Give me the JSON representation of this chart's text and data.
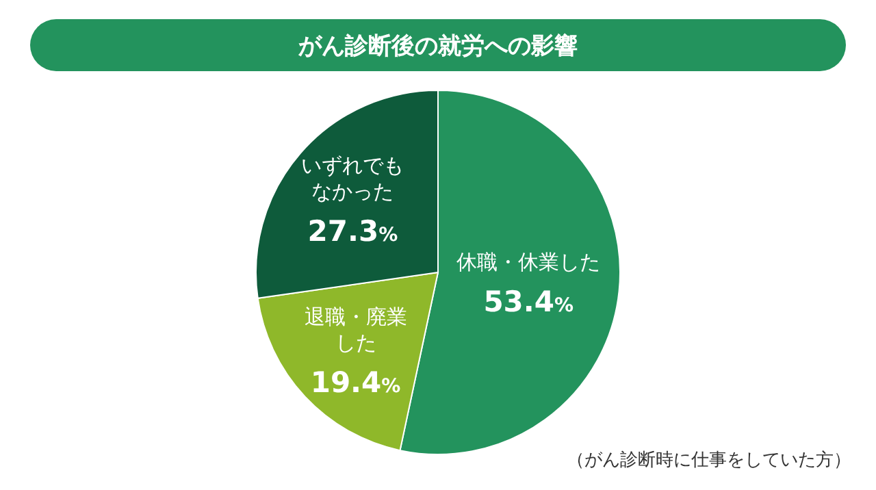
{
  "chart_data": {
    "type": "pie",
    "title": "がん診断後の就労への影響",
    "categories": [
      "休職・休業した",
      "退職・廃業した",
      "いずれでもなかった"
    ],
    "values": [
      53.4,
      19.4,
      27.3
    ],
    "colors": [
      "#23935d",
      "#8fb82a",
      "#0e5b3b"
    ],
    "value_labels": [
      "53.4%",
      "19.4%",
      "27.3%"
    ],
    "annotations": [
      "（がん診断時に仕事をしていた方）"
    ]
  }
}
